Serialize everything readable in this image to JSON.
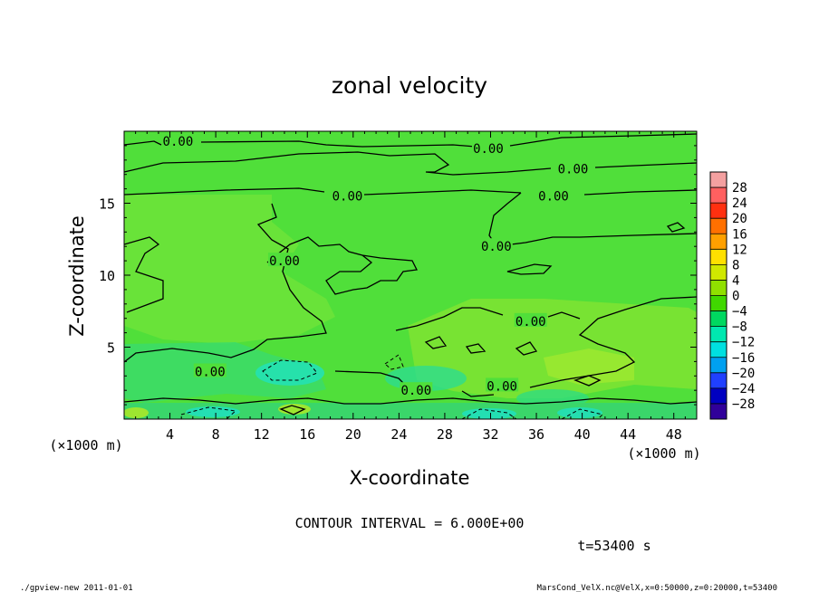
{
  "chart_data": {
    "type": "heatmap",
    "title": "zonal velocity",
    "xlabel": "X-coordinate",
    "ylabel": "Z-coordinate",
    "x_unit_note": "(×1000 m)",
    "y_unit_note": "(×1000 m)",
    "xlim": [
      0,
      50
    ],
    "ylim": [
      0,
      20
    ],
    "x_ticks": [
      4,
      8,
      12,
      16,
      20,
      24,
      28,
      32,
      36,
      40,
      44,
      48
    ],
    "y_ticks": [
      5,
      10,
      15
    ],
    "contour_interval": "CONTOUR INTERVAL = 6.000E+00",
    "time_label": "t=53400 s",
    "contour_labels": [
      {
        "text": "0.00",
        "x": 4.7,
        "y": 19.3
      },
      {
        "text": "0.00",
        "x": 31.8,
        "y": 18.8
      },
      {
        "text": "0.00",
        "x": 39.2,
        "y": 17.4
      },
      {
        "text": "0.00",
        "x": 19.5,
        "y": 15.5
      },
      {
        "text": "0.00",
        "x": 37.5,
        "y": 15.5
      },
      {
        "text": "0.00",
        "x": 32.5,
        "y": 12.0
      },
      {
        "text": "0.00",
        "x": 14.0,
        "y": 11.0
      },
      {
        "text": "0.00",
        "x": 35.5,
        "y": 6.8
      },
      {
        "text": "0.00",
        "x": 7.5,
        "y": 3.3
      },
      {
        "text": "0.00",
        "x": 25.5,
        "y": 2.0
      },
      {
        "text": "0.00",
        "x": 33.0,
        "y": 2.3
      }
    ],
    "colorbar": {
      "levels": [
        "28",
        "24",
        "20",
        "16",
        "12",
        "8",
        "4",
        "0",
        "−4",
        "−8",
        "−12",
        "−16",
        "−20",
        "−24",
        "−28"
      ],
      "colors": [
        "#f4a0a0",
        "#ff6060",
        "#ff3010",
        "#ff7000",
        "#ffa000",
        "#ffe000",
        "#d0e800",
        "#90e000",
        "#40d800",
        "#00d860",
        "#00e8b0",
        "#00e0e0",
        "#00a0f0",
        "#2040ff",
        "#0000c0",
        "#30009a"
      ]
    }
  },
  "footer": {
    "left": "./gpview-new   2011-01-01",
    "right": "MarsCond_VelX.nc@VelX,x=0:50000,z=0:20000,t=53400"
  }
}
